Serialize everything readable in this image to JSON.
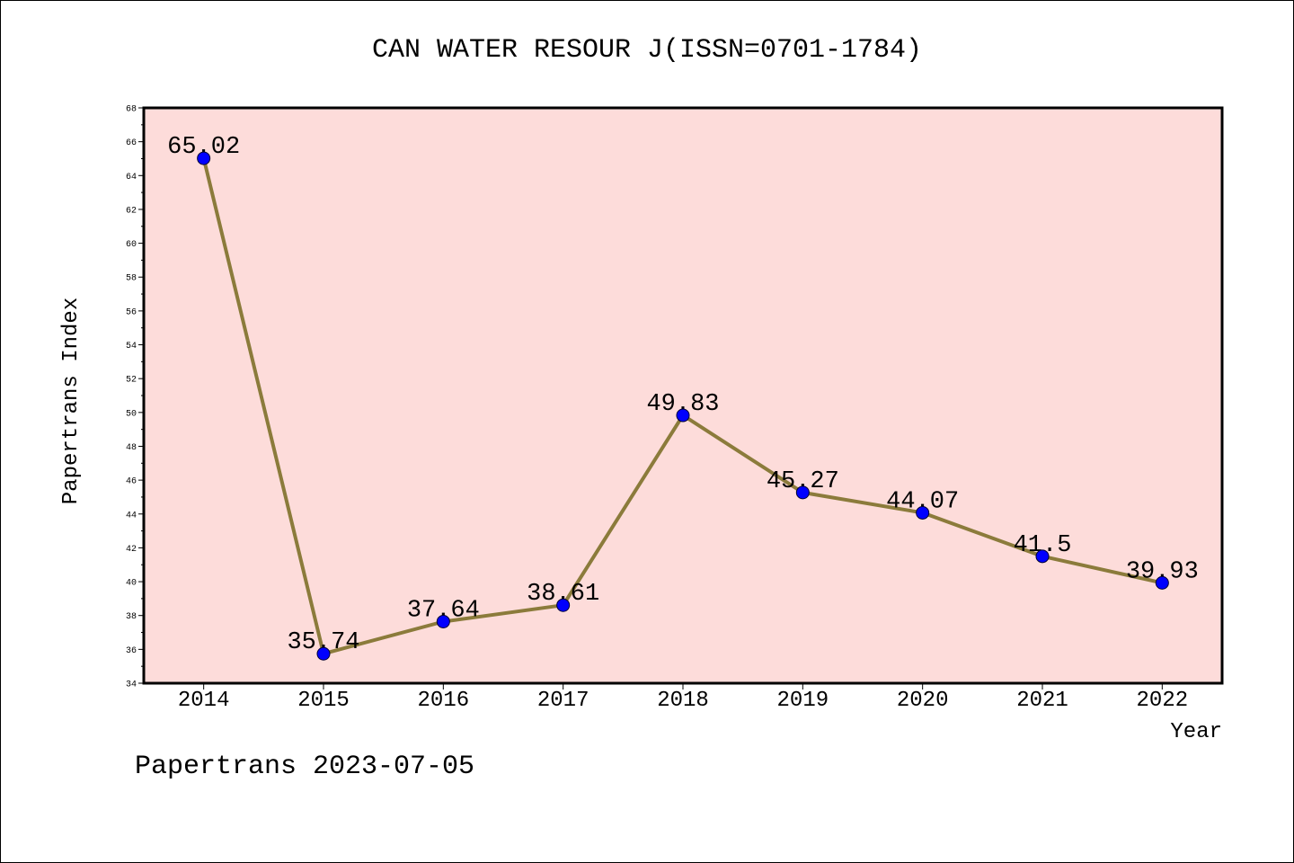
{
  "chart_data": {
    "type": "line",
    "title": "CAN WATER RESOUR J(ISSN=0701-1784)",
    "xlabel": "Year",
    "ylabel": "Papertrans Index",
    "x": [
      2014,
      2015,
      2016,
      2017,
      2018,
      2019,
      2020,
      2021,
      2022
    ],
    "series": [
      {
        "values": [
          65.02,
          35.74,
          37.64,
          38.61,
          49.83,
          45.27,
          44.07,
          41.5,
          39.93
        ]
      }
    ],
    "xlim": [
      2013.5,
      2022.5
    ],
    "ylim": [
      34,
      68
    ],
    "yticks": [
      34,
      36,
      38,
      40,
      42,
      44,
      46,
      48,
      50,
      52,
      54,
      56,
      58,
      60,
      62,
      64,
      66,
      68
    ],
    "grid": false,
    "colors": {
      "background": "#fddcda",
      "line": "#8b7b3b",
      "marker": "#0000ff"
    }
  },
  "footer": {
    "text": "Papertrans 2023-07-05"
  }
}
